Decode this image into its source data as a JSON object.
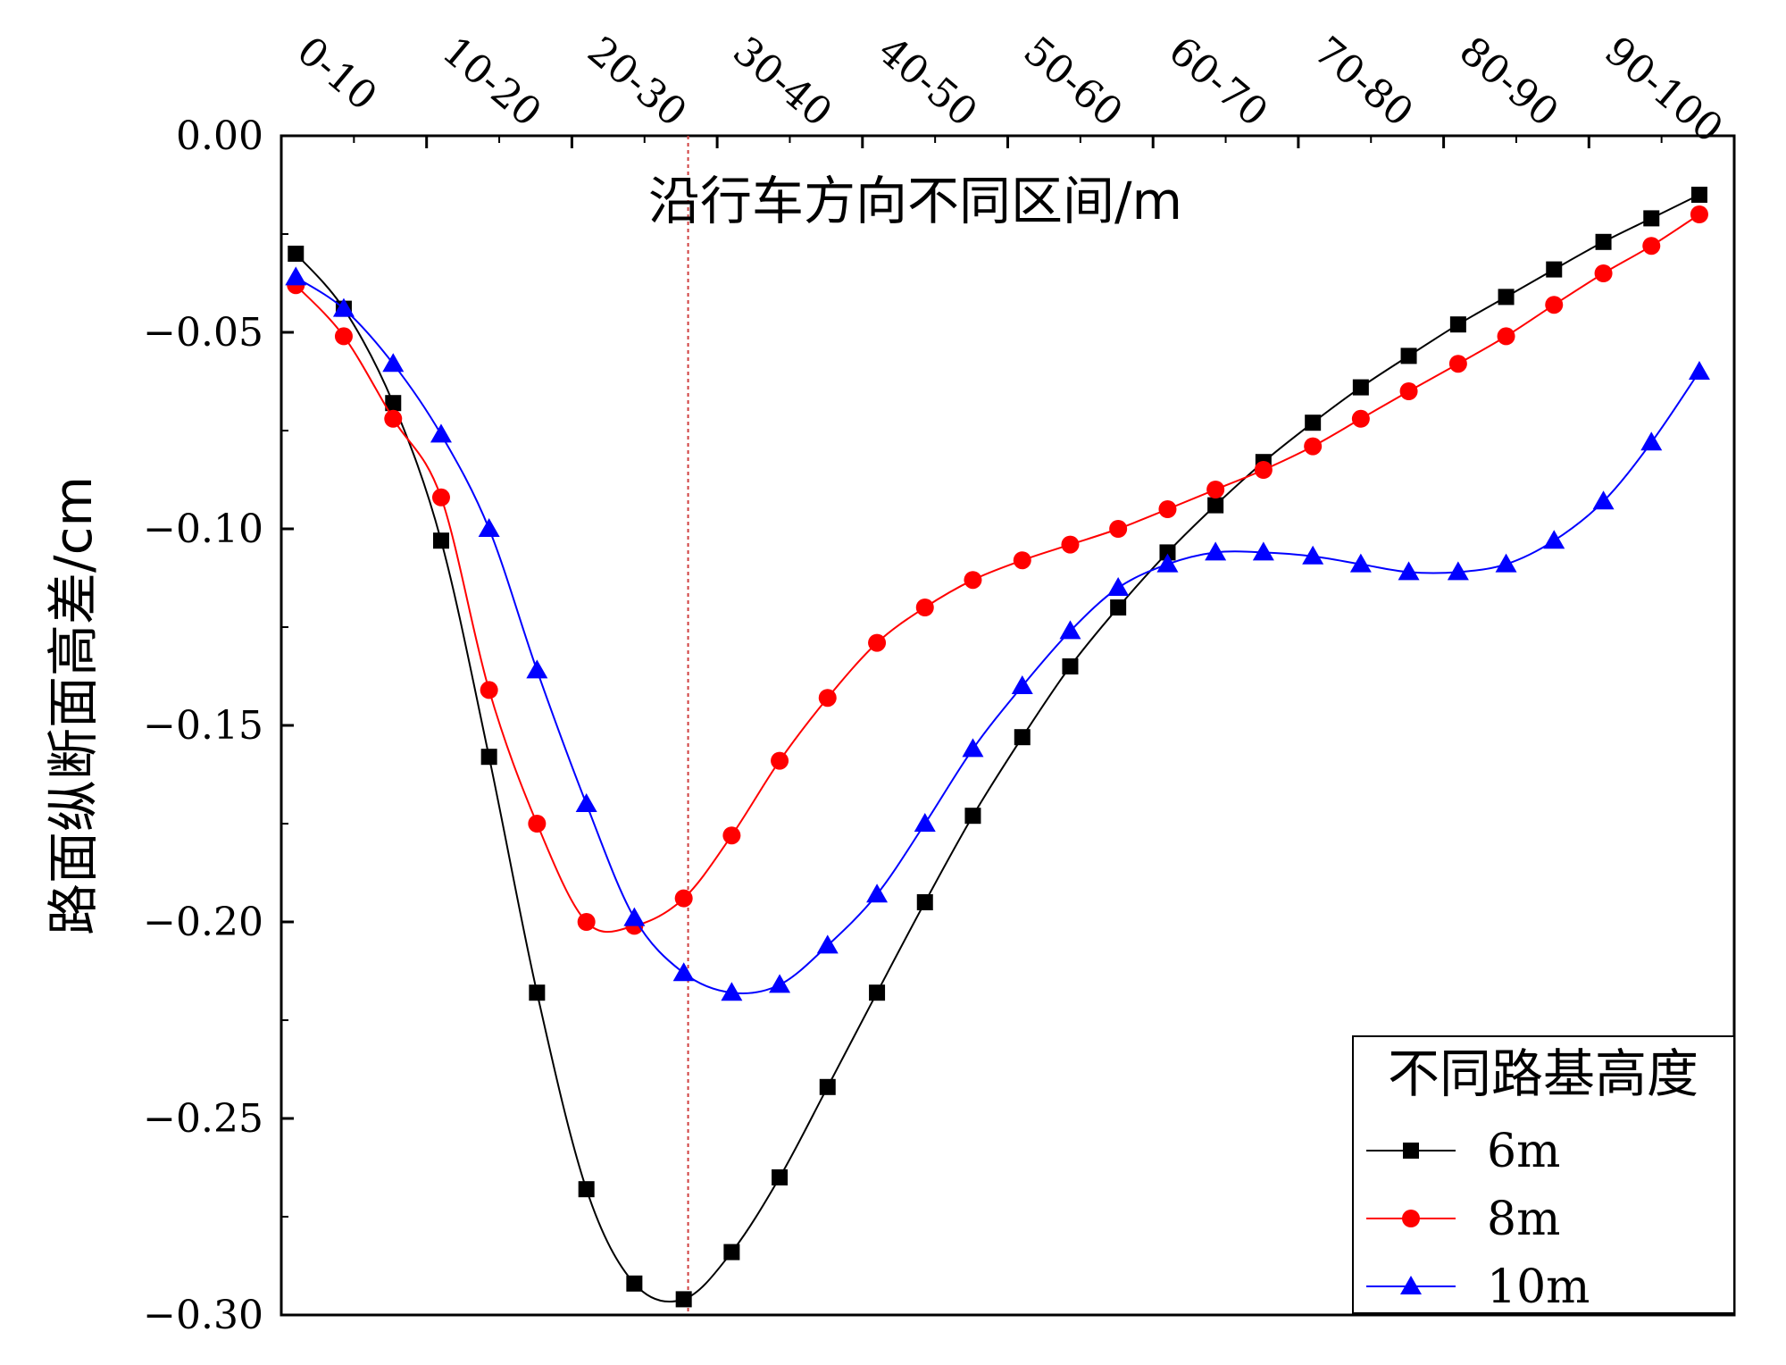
{
  "chart_data": {
    "type": "line",
    "title": "",
    "xlabel": "沿行车方向不同区间/m",
    "ylabel": "路面纵断面高差/cm",
    "x_categories": [
      "0-10",
      "10-20",
      "20-30",
      "30-40",
      "40-50",
      "50-60",
      "60-70",
      "70-80",
      "80-90",
      "90-100"
    ],
    "xlim": [
      0,
      100
    ],
    "ylim": [
      -0.3,
      0.0
    ],
    "yticks": [
      0.0,
      -0.05,
      -0.1,
      -0.15,
      -0.2,
      -0.25,
      -0.3
    ],
    "ytick_labels": [
      "0.00",
      "−0.05",
      "−0.10",
      "−0.15",
      "−0.20",
      "−0.25",
      "−0.30"
    ],
    "reference_line_x": 28.0,
    "grid": false,
    "legend": {
      "title": "不同路基高度",
      "position": "bottom-right"
    },
    "series": [
      {
        "name": "6m",
        "color": "#000000",
        "marker": "square",
        "x": [
          1,
          4.3,
          7.7,
          11,
          14.3,
          17.6,
          21,
          24.3,
          27.7,
          31,
          34.3,
          37.6,
          41,
          44.3,
          47.6,
          51,
          54.3,
          57.6,
          61,
          64.3,
          67.6,
          71,
          74.3,
          77.6,
          81,
          84.3,
          87.6,
          91,
          94.3,
          97.6
        ],
        "values": [
          -0.03,
          -0.044,
          -0.068,
          -0.103,
          -0.158,
          -0.218,
          -0.268,
          -0.292,
          -0.296,
          -0.284,
          -0.265,
          -0.242,
          -0.218,
          -0.195,
          -0.173,
          -0.153,
          -0.135,
          -0.12,
          -0.106,
          -0.094,
          -0.083,
          -0.073,
          -0.064,
          -0.056,
          -0.048,
          -0.041,
          -0.034,
          -0.027,
          -0.021,
          -0.015
        ]
      },
      {
        "name": "8m",
        "color": "#ff0000",
        "marker": "circle",
        "x": [
          1,
          4.3,
          7.7,
          11,
          14.3,
          17.6,
          21,
          24.3,
          27.7,
          31,
          34.3,
          37.6,
          41,
          44.3,
          47.6,
          51,
          54.3,
          57.6,
          61,
          64.3,
          67.6,
          71,
          74.3,
          77.6,
          81,
          84.3,
          87.6,
          91,
          94.3,
          97.6
        ],
        "values": [
          -0.038,
          -0.051,
          -0.072,
          -0.092,
          -0.141,
          -0.175,
          -0.2,
          -0.201,
          -0.194,
          -0.178,
          -0.159,
          -0.143,
          -0.129,
          -0.12,
          -0.113,
          -0.108,
          -0.104,
          -0.1,
          -0.095,
          -0.09,
          -0.085,
          -0.079,
          -0.072,
          -0.065,
          -0.058,
          -0.051,
          -0.043,
          -0.035,
          -0.028,
          -0.02
        ]
      },
      {
        "name": "10m",
        "color": "#0000ff",
        "marker": "triangle",
        "x": [
          1,
          4.3,
          7.7,
          11,
          14.3,
          17.6,
          21,
          24.3,
          27.7,
          31,
          34.3,
          37.6,
          41,
          44.3,
          47.6,
          51,
          54.3,
          57.6,
          61,
          64.3,
          67.6,
          71,
          74.3,
          77.6,
          81,
          84.3,
          87.6,
          91,
          94.3,
          97.6
        ],
        "values": [
          -0.036,
          -0.044,
          -0.058,
          -0.076,
          -0.1,
          -0.136,
          -0.17,
          -0.199,
          -0.213,
          -0.218,
          -0.216,
          -0.206,
          -0.193,
          -0.175,
          -0.156,
          -0.14,
          -0.126,
          -0.115,
          -0.109,
          -0.106,
          -0.106,
          -0.107,
          -0.109,
          -0.111,
          -0.111,
          -0.109,
          -0.103,
          -0.093,
          -0.078,
          -0.06
        ]
      }
    ]
  }
}
